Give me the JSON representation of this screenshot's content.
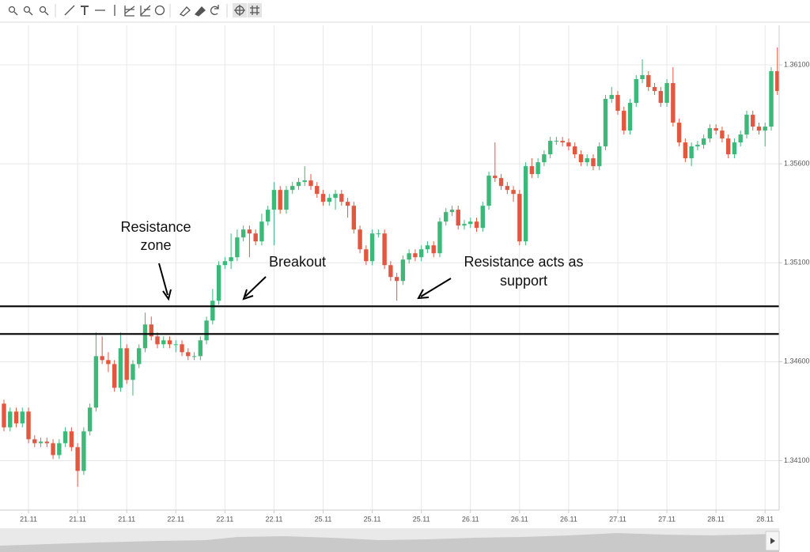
{
  "chart_data": {
    "type": "candlestick",
    "categories": [
      null,
      null,
      null,
      null,
      "21.11",
      null,
      null,
      null,
      null,
      null,
      null,
      null,
      "21.11",
      null,
      null,
      null,
      null,
      null,
      null,
      null,
      "21.11",
      null,
      null,
      null,
      null,
      null,
      null,
      null,
      "22.11",
      null,
      null,
      null,
      null,
      null,
      null,
      null,
      "22.11",
      null,
      null,
      null,
      null,
      null,
      null,
      null,
      "22.11",
      null,
      null,
      null,
      null,
      null,
      null,
      null,
      "25.11",
      null,
      null,
      null,
      null,
      null,
      null,
      null,
      "25.11",
      null,
      null,
      null,
      null,
      null,
      null,
      null,
      "25.11",
      null,
      null,
      null,
      null,
      null,
      null,
      null,
      "26.11",
      null,
      null,
      null,
      null,
      null,
      null,
      null,
      "26.11",
      null,
      null,
      null,
      null,
      null,
      null,
      null,
      "26.11",
      null,
      null,
      null,
      null,
      null,
      null,
      null,
      "27.11",
      null,
      null,
      null,
      null,
      null,
      null,
      null,
      "27.11",
      null,
      null,
      null,
      null,
      null,
      null,
      null,
      "28.11",
      null,
      null,
      null,
      null,
      null,
      null,
      null,
      "28.11",
      null,
      null
    ],
    "open": [
      1.34388,
      1.34268,
      1.34348,
      1.34288,
      1.34348,
      1.34208,
      1.34188,
      1.34196,
      1.34188,
      1.34128,
      1.34188,
      1.34248,
      1.34168,
      1.34048,
      1.34248,
      1.34368,
      1.34628,
      1.34608,
      1.34588,
      1.34468,
      1.34668,
      1.34508,
      1.34588,
      1.34668,
      1.34788,
      1.34728,
      1.34688,
      1.34708,
      1.34688,
      1.34688,
      1.34648,
      1.34628,
      1.34628,
      1.34708,
      1.34808,
      1.34908,
      1.35088,
      1.35108,
      1.35128,
      1.35228,
      1.35268,
      1.35248,
      1.35208,
      1.35308,
      1.35368,
      1.35468,
      1.35368,
      1.35468,
      1.35488,
      1.35508,
      1.35516,
      1.35488,
      1.35448,
      1.35408,
      1.35428,
      1.35448,
      1.35408,
      1.35388,
      1.35268,
      1.35168,
      1.35108,
      1.35248,
      1.35248,
      1.35088,
      1.35028,
      1.35008,
      1.35116,
      1.35148,
      1.35128,
      1.35168,
      1.35188,
      1.35148,
      1.35308,
      1.35356,
      1.35368,
      1.35288,
      1.35296,
      1.35308,
      1.35276,
      1.35388,
      1.3554,
      1.35528,
      1.35488,
      1.35468,
      1.35448,
      1.35208,
      1.35588,
      1.35548,
      1.35608,
      1.35648,
      1.35716,
      1.35716,
      1.35708,
      1.35688,
      1.35648,
      1.35608,
      1.35628,
      1.35588,
      1.35688,
      1.35928,
      1.35948,
      1.35868,
      1.35768,
      1.35908,
      1.36028,
      1.36048,
      1.35988,
      1.35968,
      1.35908,
      1.36008,
      1.35808,
      1.35708,
      1.35628,
      1.35688,
      1.35696,
      1.35728,
      1.3578,
      1.35768,
      1.35728,
      1.35648,
      1.35708,
      1.35748,
      1.35848,
      1.35788,
      1.35768,
      1.35788,
      1.36068
    ],
    "high": [
      1.34408,
      1.34368,
      1.34368,
      1.34368,
      1.34368,
      1.34228,
      1.34216,
      1.34216,
      1.34208,
      1.34208,
      1.34268,
      1.34268,
      1.34188,
      1.34268,
      1.34388,
      1.34748,
      1.34728,
      1.34648,
      1.34608,
      1.34748,
      1.34688,
      1.34608,
      1.34688,
      1.34848,
      1.34828,
      1.34748,
      1.34728,
      1.34728,
      1.34708,
      1.34708,
      1.34668,
      1.34648,
      1.34728,
      1.34828,
      1.34968,
      1.35108,
      1.35128,
      1.35248,
      1.35268,
      1.35288,
      1.35288,
      1.35268,
      1.35348,
      1.35388,
      1.35508,
      1.35488,
      1.35488,
      1.35508,
      1.35528,
      1.35588,
      1.35548,
      1.35508,
      1.35468,
      1.35448,
      1.35468,
      1.35468,
      1.35428,
      1.35408,
      1.35288,
      1.35188,
      1.35268,
      1.35268,
      1.35268,
      1.35108,
      1.35048,
      1.35136,
      1.35168,
      1.35168,
      1.35188,
      1.35208,
      1.35208,
      1.35328,
      1.35376,
      1.35388,
      1.35388,
      1.35316,
      1.35328,
      1.35328,
      1.35408,
      1.3556,
      1.35708,
      1.35548,
      1.35508,
      1.35488,
      1.35468,
      1.35608,
      1.35628,
      1.35628,
      1.35668,
      1.35736,
      1.35736,
      1.35736,
      1.35728,
      1.35708,
      1.35668,
      1.35648,
      1.35648,
      1.35708,
      1.35948,
      1.35988,
      1.35968,
      1.35888,
      1.35928,
      1.36048,
      1.36128,
      1.36068,
      1.36008,
      1.35988,
      1.36028,
      1.36088,
      1.35828,
      1.35728,
      1.35708,
      1.35716,
      1.35748,
      1.358,
      1.358,
      1.35788,
      1.35748,
      1.35728,
      1.35768,
      1.35868,
      1.35868,
      1.35808,
      1.35808,
      1.36088,
      1.36188
    ],
    "low": [
      1.34248,
      1.34248,
      1.34268,
      1.34268,
      1.34188,
      1.34168,
      1.34168,
      1.34168,
      1.34108,
      1.34108,
      1.34168,
      1.34148,
      1.33968,
      1.34028,
      1.34228,
      1.34348,
      1.34588,
      1.34548,
      1.34448,
      1.34448,
      1.34488,
      1.34428,
      1.34568,
      1.34648,
      1.34708,
      1.34668,
      1.34668,
      1.34668,
      1.34648,
      1.34628,
      1.34608,
      1.34608,
      1.34608,
      1.34688,
      1.34788,
      1.34888,
      1.35068,
      1.35068,
      1.35108,
      1.35208,
      1.35128,
      1.35188,
      1.35188,
      1.35288,
      1.35188,
      1.35348,
      1.35348,
      1.35448,
      1.35468,
      1.35488,
      1.35468,
      1.35428,
      1.35388,
      1.35388,
      1.35368,
      1.35388,
      1.35328,
      1.35248,
      1.35148,
      1.35088,
      1.35088,
      1.35228,
      1.35068,
      1.35008,
      1.34908,
      1.34988,
      1.35096,
      1.35108,
      1.35108,
      1.35148,
      1.35128,
      1.35128,
      1.35288,
      1.35336,
      1.35268,
      1.35268,
      1.35276,
      1.35256,
      1.35256,
      1.35368,
      1.35508,
      1.35468,
      1.35448,
      1.35408,
      1.35188,
      1.35188,
      1.35528,
      1.35528,
      1.35588,
      1.35628,
      1.35696,
      1.35688,
      1.35668,
      1.35628,
      1.35588,
      1.35588,
      1.35568,
      1.35568,
      1.35668,
      1.35908,
      1.35848,
      1.35748,
      1.35748,
      1.35888,
      1.36008,
      1.35968,
      1.35948,
      1.35888,
      1.35888,
      1.35788,
      1.35688,
      1.35608,
      1.35588,
      1.35668,
      1.35676,
      1.35708,
      1.35748,
      1.35708,
      1.35628,
      1.35628,
      1.35688,
      1.35728,
      1.35768,
      1.35748,
      1.35688,
      1.35768,
      1.35948
    ],
    "close": [
      1.34268,
      1.34348,
      1.34288,
      1.34348,
      1.34208,
      1.34188,
      1.34196,
      1.34188,
      1.34128,
      1.34188,
      1.34248,
      1.34168,
      1.34048,
      1.34248,
      1.34368,
      1.34628,
      1.34608,
      1.34588,
      1.34468,
      1.34668,
      1.34508,
      1.34588,
      1.34668,
      1.34788,
      1.34728,
      1.34688,
      1.34708,
      1.34688,
      1.34688,
      1.34648,
      1.34628,
      1.34628,
      1.34708,
      1.34808,
      1.34908,
      1.35088,
      1.35108,
      1.35128,
      1.35228,
      1.35268,
      1.35248,
      1.35208,
      1.35308,
      1.35368,
      1.35468,
      1.35368,
      1.35468,
      1.35488,
      1.35508,
      1.35516,
      1.35488,
      1.35448,
      1.35408,
      1.35428,
      1.35448,
      1.35408,
      1.35388,
      1.35268,
      1.35168,
      1.35108,
      1.35248,
      1.35248,
      1.35088,
      1.35028,
      1.35008,
      1.35116,
      1.35148,
      1.35128,
      1.35168,
      1.35188,
      1.35148,
      1.35308,
      1.35356,
      1.35368,
      1.35288,
      1.35296,
      1.35308,
      1.35276,
      1.35388,
      1.3554,
      1.35528,
      1.35488,
      1.35468,
      1.35448,
      1.35208,
      1.35588,
      1.35548,
      1.35608,
      1.35648,
      1.35716,
      1.35716,
      1.35708,
      1.35688,
      1.35648,
      1.35608,
      1.35628,
      1.35588,
      1.35688,
      1.35928,
      1.35948,
      1.35868,
      1.35768,
      1.35908,
      1.36028,
      1.36048,
      1.35988,
      1.35968,
      1.35908,
      1.36008,
      1.35808,
      1.35708,
      1.35628,
      1.35688,
      1.35696,
      1.35728,
      1.3578,
      1.35768,
      1.35728,
      1.35648,
      1.35708,
      1.35748,
      1.35848,
      1.35788,
      1.35768,
      1.35788,
      1.36068,
      1.35968
    ],
    "up_color": "#3cb878",
    "down_color": "#e2573f",
    "ylim": [
      1.3385,
      1.363
    ],
    "yticks": [
      {
        "value": 1.341,
        "label": "1.34100"
      },
      {
        "value": 1.346,
        "label": "1.34600"
      },
      {
        "value": 1.351,
        "label": "1.35100"
      },
      {
        "value": 1.356,
        "label": "1.35600"
      },
      {
        "value": 1.361,
        "label": "1.36100"
      }
    ],
    "grid": true,
    "levels": [
      1.3488,
      1.3474
    ],
    "annotations": [
      {
        "lines": [
          "Resistance",
          "zone"
        ]
      },
      {
        "lines": [
          "Breakout"
        ]
      },
      {
        "lines": [
          "Resistance acts as",
          "support"
        ]
      }
    ]
  }
}
